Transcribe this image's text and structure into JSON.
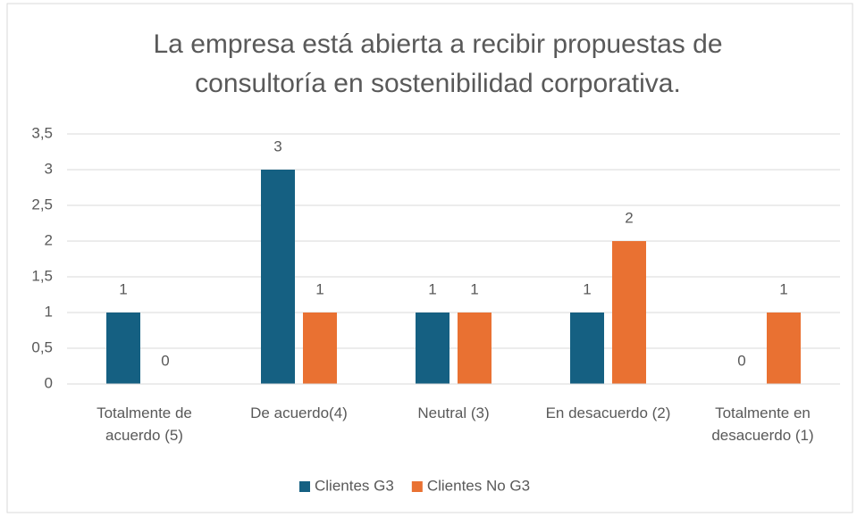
{
  "chart_data": {
    "type": "bar",
    "title": "La empresa está abierta a recibir propuestas de consultoría en sostenibilidad corporativa.",
    "categories": [
      "Totalmente de acuerdo (5)",
      "De acuerdo(4)",
      "Neutral (3)",
      "En desacuerdo (2)",
      "Totalmente en desacuerdo (1)"
    ],
    "series": [
      {
        "name": "Clientes G3",
        "color": "#156082",
        "values": [
          1,
          3,
          1,
          1,
          0
        ]
      },
      {
        "name": "Clientes No G3",
        "color": "#e97132",
        "values": [
          0,
          1,
          1,
          2,
          1
        ]
      }
    ],
    "ylim": [
      0,
      3.5
    ],
    "yticks": [
      0,
      {
        "value": 0.5,
        "label": "0,5"
      },
      1,
      {
        "value": 1.5,
        "label": "1,5"
      },
      2,
      {
        "value": 2.5,
        "label": "2,5"
      },
      3,
      {
        "value": 3.5,
        "label": "3,5"
      }
    ],
    "grid": true,
    "legend": "bottom"
  }
}
